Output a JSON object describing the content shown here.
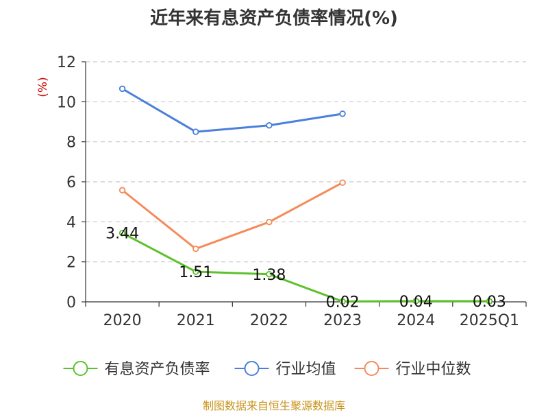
{
  "title": "近年来有息资产负债率情况(%)",
  "source_note": "制图数据来自恒生聚源数据库",
  "chart_data": {
    "type": "line",
    "title": "近年来有息资产负债率情况(%)",
    "ylabel": "(%)",
    "xlabel": "",
    "categories": [
      "2020",
      "2021",
      "2022",
      "2023",
      "2024",
      "2025Q1"
    ],
    "ylim": [
      0,
      12
    ],
    "yticks": [
      0,
      2,
      4,
      6,
      8,
      10,
      12
    ],
    "grid": true,
    "legend_position": "bottom",
    "series": [
      {
        "name": "有息资产负债率",
        "color": "#5cc12a",
        "values": [
          3.44,
          1.51,
          1.38,
          0.02,
          0.04,
          0.03
        ],
        "labels": [
          "3.44",
          "1.51",
          "1.38",
          "0.02",
          "0.04",
          "0.03"
        ]
      },
      {
        "name": "行业均值",
        "color": "#4a7fdc",
        "values": [
          10.65,
          8.5,
          8.82,
          9.4,
          null,
          null
        ]
      },
      {
        "name": "行业中位数",
        "color": "#f58b5a",
        "values": [
          5.58,
          2.65,
          3.99,
          5.96,
          null,
          null
        ]
      }
    ]
  }
}
